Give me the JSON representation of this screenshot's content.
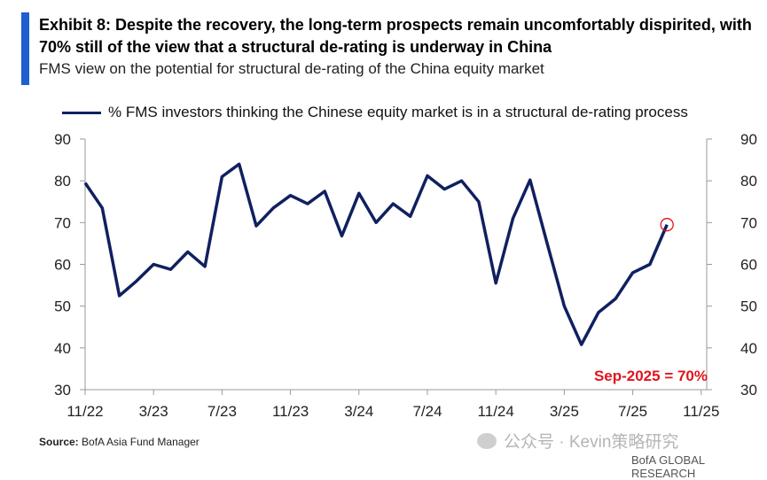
{
  "header": {
    "title": "Exhibit 8: Despite the recovery, the long-term prospects remain uncomfortably dispirited, with 70% still of the view that a structural de-rating is underway in China",
    "subtitle": "FMS view on the potential for structural de-rating of the China equity market",
    "accent_color": "#1f5fd1"
  },
  "legend": {
    "label": "% FMS investors thinking the Chinese equity market is in a structural de-rating process"
  },
  "annotation": {
    "text": "Sep-2025 = 70%",
    "color": "#e0141e"
  },
  "footer": {
    "source_label": "Source:",
    "source_text": "BofA Asia Fund Manager",
    "watermark": "公众号 · Kevin策略研究",
    "brand": "BofA GLOBAL RESEARCH"
  },
  "chart_data": {
    "type": "line",
    "title": "",
    "xlabel": "",
    "ylabel": "",
    "ylim": [
      30,
      90
    ],
    "yticks": [
      30,
      40,
      50,
      60,
      70,
      80,
      90
    ],
    "xticks": [
      "11/22",
      "3/23",
      "7/23",
      "11/23",
      "3/24",
      "7/24",
      "11/24",
      "3/25",
      "7/25",
      "11/25"
    ],
    "grid": false,
    "legend_position": "top",
    "line_color": "#10205f",
    "series": [
      {
        "name": "% FMS investors thinking the Chinese equity market is in a structural de-rating process",
        "x": [
          "Nov-22",
          "Dec-22",
          "Jan-23",
          "Feb-23",
          "Mar-23",
          "Apr-23",
          "May-23",
          "Jun-23",
          "Jul-23",
          "Aug-23",
          "Sep-23",
          "Oct-23",
          "Nov-23",
          "Dec-23",
          "Jan-24",
          "Feb-24",
          "Mar-24",
          "Apr-24",
          "May-24",
          "Jun-24",
          "Jul-24",
          "Aug-24",
          "Sep-24",
          "Oct-24",
          "Nov-24",
          "Dec-24",
          "Jan-25",
          "Feb-25",
          "Mar-25",
          "Apr-25",
          "May-25",
          "Jun-25",
          "Jul-25",
          "Aug-25",
          "Sep-25"
        ],
        "values": [
          79.5,
          73.5,
          52.5,
          56,
          60,
          58.8,
          63,
          59.5,
          81,
          84,
          69.2,
          73.5,
          76.5,
          74.5,
          77.5,
          66.8,
          77,
          70,
          74.5,
          71.5,
          81.2,
          78,
          80,
          75,
          55.5,
          71,
          80.2,
          65,
          50,
          40.8,
          48.5,
          51.8,
          58,
          60,
          69.5
        ]
      }
    ],
    "highlight": {
      "x": "Sep-25",
      "value": 69.5
    }
  }
}
